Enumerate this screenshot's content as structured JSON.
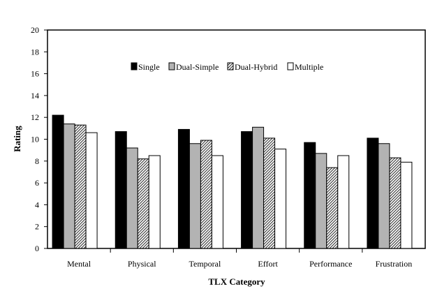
{
  "chart_data": {
    "type": "bar",
    "xlabel": "TLX Category",
    "ylabel": "Rating",
    "ylim": [
      0,
      20
    ],
    "yticks": [
      0,
      2,
      4,
      6,
      8,
      10,
      12,
      14,
      16,
      18,
      20
    ],
    "grid": false,
    "legend_position": "top-center",
    "categories": [
      "Mental",
      "Physical",
      "Temporal",
      "Effort",
      "Performance",
      "Frustration"
    ],
    "series": [
      {
        "name": "Single",
        "color": "#000000",
        "fill": "solid",
        "values": [
          12.2,
          10.7,
          10.9,
          10.7,
          9.7,
          10.1
        ]
      },
      {
        "name": "Dual-Simple",
        "color": "#b3b3b3",
        "fill": "solid",
        "values": [
          11.4,
          9.2,
          9.6,
          11.1,
          8.7,
          9.6
        ]
      },
      {
        "name": "Dual-Hybrid",
        "color": "#6e6e6e",
        "fill": "diagonal-hatch",
        "values": [
          11.3,
          8.2,
          9.9,
          10.1,
          7.4,
          8.3
        ]
      },
      {
        "name": "Multiple",
        "color": "#ffffff",
        "fill": "solid",
        "values": [
          10.6,
          8.5,
          8.5,
          9.1,
          8.5,
          7.9
        ]
      }
    ]
  }
}
